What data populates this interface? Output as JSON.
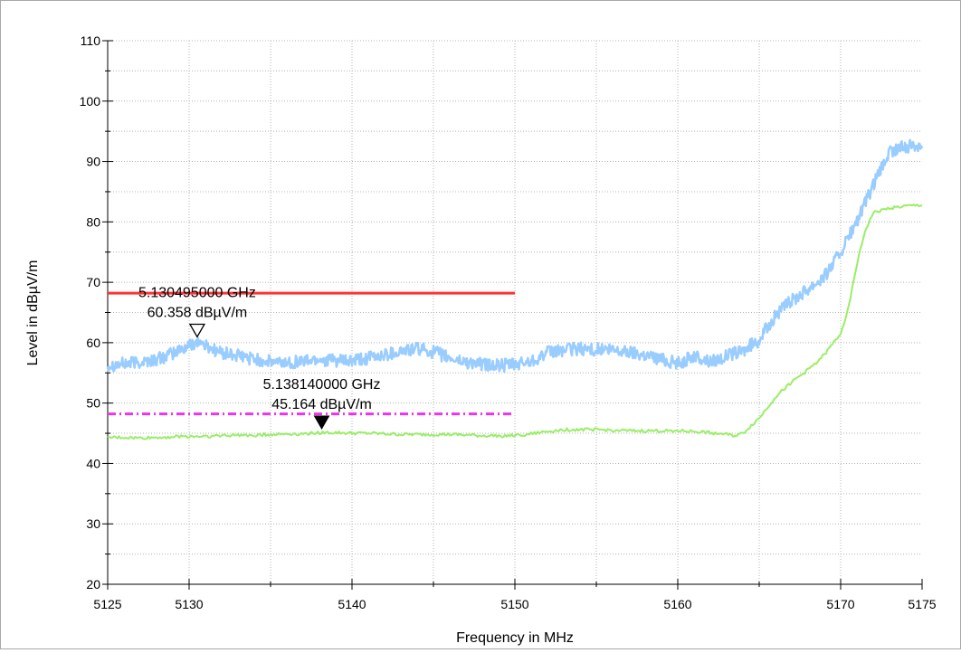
{
  "chart_data": {
    "type": "line",
    "xlabel": "Frequency in MHz",
    "ylabel": "Level in dBµV/m",
    "xlim": [
      5125,
      5175
    ],
    "ylim": [
      20,
      110
    ],
    "x_ticks": [
      5125,
      5130,
      5140,
      5150,
      5160,
      5170,
      5175
    ],
    "x_tick_labels": [
      "5125",
      "5130",
      "5140",
      "5150",
      "5160",
      "5170",
      "5175"
    ],
    "y_ticks": [
      20,
      30,
      40,
      50,
      60,
      70,
      80,
      90,
      100,
      110
    ],
    "y_tick_labels": [
      "20",
      "30",
      "40",
      "50",
      "60",
      "70",
      "80",
      "90",
      "100",
      "110"
    ],
    "grid": true,
    "series": [
      {
        "style": "peak",
        "color": "#99ccff",
        "x": [
          5125,
          5126,
          5127,
          5128,
          5129,
          5130,
          5130.5,
          5131,
          5132,
          5133,
          5134,
          5135,
          5136,
          5137,
          5138,
          5139,
          5140,
          5141,
          5142,
          5143,
          5144,
          5145,
          5146,
          5147,
          5148,
          5149,
          5150,
          5151,
          5152,
          5153,
          5154,
          5155,
          5156,
          5157,
          5158,
          5159,
          5160,
          5161,
          5162,
          5163,
          5164,
          5165,
          5166,
          5167,
          5168,
          5169,
          5170,
          5171,
          5172,
          5173,
          5174,
          5175
        ],
        "y": [
          56.3,
          56.5,
          56.8,
          57.2,
          58.2,
          59.5,
          60.3,
          59.5,
          58.3,
          57.8,
          57.3,
          56.8,
          56.7,
          57.0,
          57.3,
          57.0,
          56.9,
          57.4,
          58.0,
          58.6,
          59.0,
          58.5,
          57.4,
          56.8,
          56.4,
          56.2,
          56.3,
          57.0,
          58.3,
          58.8,
          59.0,
          58.9,
          58.7,
          58.5,
          58.0,
          57.3,
          56.6,
          57.7,
          56.9,
          57.8,
          58.6,
          60.5,
          64.5,
          67.0,
          69.0,
          71.0,
          75.0,
          80.0,
          86.0,
          91.5,
          92.5,
          92.8
        ]
      },
      {
        "style": "average",
        "color": "#99ee66",
        "x": [
          5125,
          5126,
          5127,
          5128,
          5129,
          5130,
          5131,
          5132,
          5133,
          5134,
          5135,
          5136,
          5137,
          5138,
          5139,
          5140,
          5141,
          5142,
          5143,
          5144,
          5145,
          5146,
          5147,
          5148,
          5149,
          5150,
          5151,
          5152,
          5153,
          5154,
          5155,
          5156,
          5157,
          5158,
          5159,
          5160,
          5161,
          5162,
          5163,
          5163.5,
          5164,
          5165,
          5166,
          5167,
          5168,
          5169,
          5170,
          5170.5,
          5171,
          5171.5,
          5172,
          5173,
          5174,
          5175
        ],
        "y": [
          44.3,
          44.3,
          44.2,
          44.3,
          44.4,
          44.5,
          44.5,
          44.6,
          44.7,
          44.7,
          44.8,
          44.9,
          44.9,
          45.1,
          45.1,
          45.0,
          45.0,
          44.9,
          44.8,
          44.8,
          44.8,
          44.8,
          44.7,
          44.6,
          44.6,
          44.6,
          44.9,
          45.3,
          45.6,
          45.6,
          45.6,
          45.5,
          45.4,
          45.4,
          45.4,
          45.4,
          45.3,
          45.1,
          44.8,
          44.6,
          45.0,
          47.5,
          51.0,
          53.5,
          55.5,
          58.0,
          61.5,
          66.0,
          73.0,
          78.5,
          81.5,
          82.3,
          82.6,
          82.8
        ]
      }
    ],
    "limit_lines": [
      {
        "style": "solid",
        "color": "#ff3333",
        "x": [
          5125,
          5150
        ],
        "y": 68.2
      },
      {
        "style": "dash-dot",
        "color": "#ee33ee",
        "x": [
          5125,
          5150
        ],
        "y": 48.2
      }
    ],
    "markers": [
      {
        "x": 5130.495,
        "y": 60.358,
        "shape": "hollow-triangle",
        "line1": "5.130495000 GHz",
        "line2": "60.358 dBµV/m"
      },
      {
        "x": 5138.14,
        "y": 45.164,
        "shape": "filled-triangle",
        "line1": "5.138140000 GHz",
        "line2": "45.164 dBµV/m"
      }
    ]
  }
}
